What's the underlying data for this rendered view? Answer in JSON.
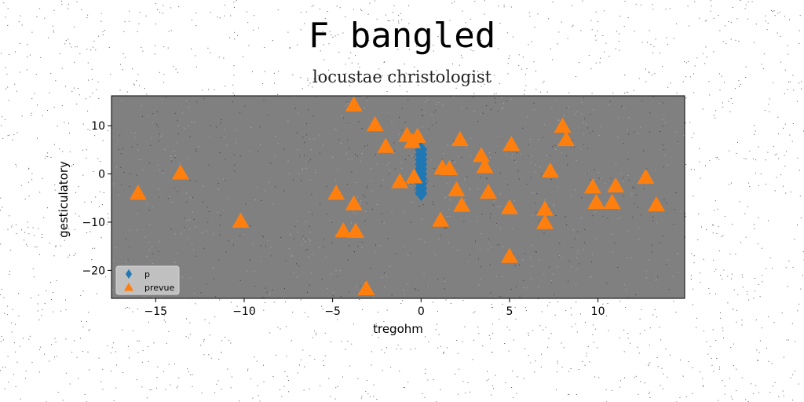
{
  "chart_data": {
    "type": "scatter",
    "title": "F bangled",
    "subtitle": "locustae christologist",
    "xlabel": "tregohm",
    "ylabel": "gesticulatory",
    "xlim": [
      -17.5,
      14.9
    ],
    "ylim": [
      -25.8,
      16.2
    ],
    "xticks": [
      -15,
      -10,
      -5,
      0,
      5,
      10
    ],
    "yticks": [
      -20,
      -10,
      0,
      10
    ],
    "legend_position": "lower-left",
    "background": "#808080",
    "series": [
      {
        "name": "p",
        "marker": "diamond",
        "color": "#1f77b4",
        "points": [
          {
            "x": 0.0,
            "y": 5.0
          },
          {
            "x": 0.0,
            "y": 4.0
          },
          {
            "x": 0.0,
            "y": 3.0
          },
          {
            "x": 0.0,
            "y": 2.0
          },
          {
            "x": 0.0,
            "y": 1.0
          },
          {
            "x": 0.0,
            "y": 0.0
          },
          {
            "x": 0.0,
            "y": -1.0
          },
          {
            "x": 0.0,
            "y": -2.0
          },
          {
            "x": 0.0,
            "y": -3.0
          },
          {
            "x": 0.0,
            "y": -4.0
          }
        ]
      },
      {
        "name": "prevue",
        "marker": "triangle",
        "color": "#ff7f0e",
        "points": [
          {
            "x": -16.0,
            "y": -4.0
          },
          {
            "x": -13.6,
            "y": 0.2
          },
          {
            "x": -10.2,
            "y": -9.8
          },
          {
            "x": -4.8,
            "y": -4.0
          },
          {
            "x": -4.4,
            "y": -11.8
          },
          {
            "x": -3.7,
            "y": -11.9
          },
          {
            "x": -3.8,
            "y": -6.2
          },
          {
            "x": -3.8,
            "y": 14.3
          },
          {
            "x": -3.1,
            "y": -23.8
          },
          {
            "x": -2.6,
            "y": 10.2
          },
          {
            "x": -2.0,
            "y": 5.7
          },
          {
            "x": -1.2,
            "y": -1.6
          },
          {
            "x": -0.8,
            "y": 8.0
          },
          {
            "x": -0.5,
            "y": 6.7
          },
          {
            "x": -0.4,
            "y": -0.6
          },
          {
            "x": -0.2,
            "y": 7.8
          },
          {
            "x": 1.1,
            "y": -9.6
          },
          {
            "x": 1.2,
            "y": 1.2
          },
          {
            "x": 1.6,
            "y": 1.1
          },
          {
            "x": 2.0,
            "y": -3.3
          },
          {
            "x": 2.2,
            "y": 7.1
          },
          {
            "x": 2.3,
            "y": -6.5
          },
          {
            "x": 3.4,
            "y": 3.8
          },
          {
            "x": 3.6,
            "y": 1.5
          },
          {
            "x": 3.8,
            "y": -3.8
          },
          {
            "x": 5.0,
            "y": -17.1
          },
          {
            "x": 5.0,
            "y": -7.0
          },
          {
            "x": 5.1,
            "y": 6.1
          },
          {
            "x": 7.0,
            "y": -7.3
          },
          {
            "x": 7.0,
            "y": -10.1
          },
          {
            "x": 7.3,
            "y": 0.6
          },
          {
            "x": 8.0,
            "y": 9.9
          },
          {
            "x": 8.2,
            "y": 7.1
          },
          {
            "x": 9.7,
            "y": -2.7
          },
          {
            "x": 9.9,
            "y": -5.9
          },
          {
            "x": 10.8,
            "y": -5.9
          },
          {
            "x": 11.0,
            "y": -2.5
          },
          {
            "x": 12.7,
            "y": -0.7
          },
          {
            "x": 13.3,
            "y": -6.4
          }
        ]
      }
    ]
  }
}
